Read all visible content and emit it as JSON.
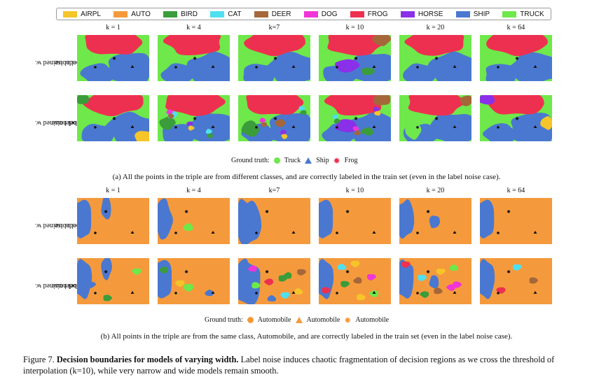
{
  "legend": [
    {
      "label": "AIRPL",
      "color": "#f5c52a"
    },
    {
      "label": "AUTO",
      "color": "#f59a3c"
    },
    {
      "label": "BIRD",
      "color": "#3a9c3a"
    },
    {
      "label": "CAT",
      "color": "#4ee0f0"
    },
    {
      "label": "DEER",
      "color": "#a5673a"
    },
    {
      "label": "DOG",
      "color": "#f035d8"
    },
    {
      "label": "FROG",
      "color": "#ee3050"
    },
    {
      "label": "HORSE",
      "color": "#8a30e8"
    },
    {
      "label": "SHIP",
      "color": "#4a78d0"
    },
    {
      "label": "TRUCK",
      "color": "#6ee84a"
    }
  ],
  "columns": [
    "k = 1",
    "k = 4",
    "k=7",
    "k = 10",
    "k = 20",
    "k = 64"
  ],
  "row_labels": {
    "clean_line1": "Model trained w.",
    "clean_line2": "no label noise",
    "noisy_line1": "Model trained w.",
    "noisy_line2": "20% label noise"
  },
  "section_a": {
    "ground_truth_label": "Ground truth:",
    "gt_items": [
      "Truck",
      "Ship",
      "Frog"
    ],
    "caption": "(a) All the points in the triple are from different classes, and are correctly labeled in the train set (even in the label noise case)."
  },
  "section_b": {
    "ground_truth_label": "Ground truth:",
    "gt_items": [
      "Automobile",
      "Automobile",
      "Automobile"
    ],
    "caption": "(b) All points in the triple are from the same class, Automobile, and are correctly labeled in the train set (even in the label noise case)."
  },
  "figure_caption": {
    "prefix": "Figure 7. ",
    "bold": "Decision boundaries for models of varying width.",
    "text": " Label noise induces chaotic fragmentation of decision regions as we cross the threshold of interpolation (k=10), while very narrow and wide models remain smooth."
  }
}
